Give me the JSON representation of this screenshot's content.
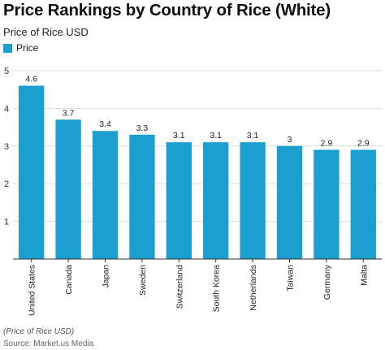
{
  "header": {
    "title": "Price Rankings by Country of Rice (White)",
    "subtitle": "Price of Rice USD"
  },
  "legend": {
    "label": "Price"
  },
  "footer": {
    "note": "(Price of Rice USD)",
    "source": "Source: Market.us Media"
  },
  "colors": {
    "bar": "#1a9fd0",
    "grid": "#dddddd",
    "axis": "#333333"
  },
  "chart_data": {
    "type": "bar",
    "title": "Price Rankings by Country of Rice (White)",
    "subtitle": "Price of Rice USD",
    "xlabel": "",
    "ylabel": "",
    "ylim": [
      0,
      5
    ],
    "yticks": [
      1,
      2,
      3,
      4,
      5
    ],
    "grid": true,
    "legend_position": "top-left",
    "categories": [
      "United States",
      "Canada",
      "Japan",
      "Sweden",
      "Switzerland",
      "South Korea",
      "Netherlands",
      "Taiwan",
      "Germany",
      "Malta"
    ],
    "series": [
      {
        "name": "Price",
        "values": [
          4.6,
          3.7,
          3.4,
          3.3,
          3.1,
          3.1,
          3.1,
          3,
          2.9,
          2.9
        ]
      }
    ]
  }
}
